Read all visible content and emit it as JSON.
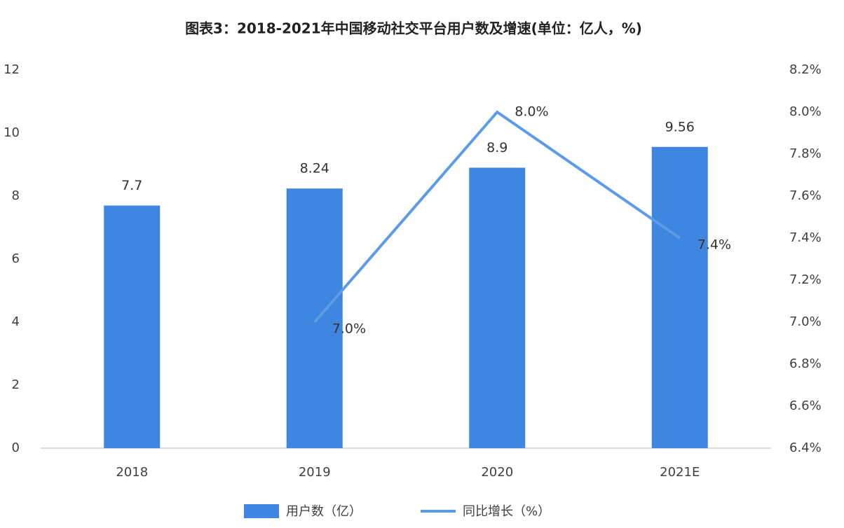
{
  "chart_data": {
    "type": "bar",
    "title": "图表3：2018-2021年中国移动社交平台用户数及增速(单位：亿人，%)",
    "categories": [
      "2018",
      "2019",
      "2020",
      "2021E"
    ],
    "series": [
      {
        "name": "用户数（亿）",
        "type": "bar",
        "color": "#3f86e0",
        "values": [
          7.7,
          8.24,
          8.9,
          9.56
        ]
      },
      {
        "name": "同比增长（%）",
        "type": "line",
        "axis": "y2",
        "color": "#5b9be8",
        "values": [
          null,
          7.0,
          8.0,
          7.4
        ],
        "value_labels": [
          null,
          "7.0%",
          "8.0%",
          "7.4%"
        ]
      }
    ],
    "ylim": [
      0,
      12
    ],
    "yticks": [
      0,
      2,
      4,
      6,
      8,
      10,
      12
    ],
    "y2lim": [
      6.4,
      8.2
    ],
    "y2ticks": [
      {
        "value": 6.4,
        "label": "6.4%"
      },
      {
        "value": 6.6,
        "label": "6.6%"
      },
      {
        "value": 6.8,
        "label": "6.8%"
      },
      {
        "value": 7.0,
        "label": "7.0%"
      },
      {
        "value": 7.2,
        "label": "7.2%"
      },
      {
        "value": 7.4,
        "label": "7.4%"
      },
      {
        "value": 7.6,
        "label": "7.6%"
      },
      {
        "value": 7.8,
        "label": "7.8%"
      },
      {
        "value": 8.0,
        "label": "8.0%"
      },
      {
        "value": 8.2,
        "label": "8.2%"
      }
    ],
    "legend": "bottom",
    "grid": false
  }
}
